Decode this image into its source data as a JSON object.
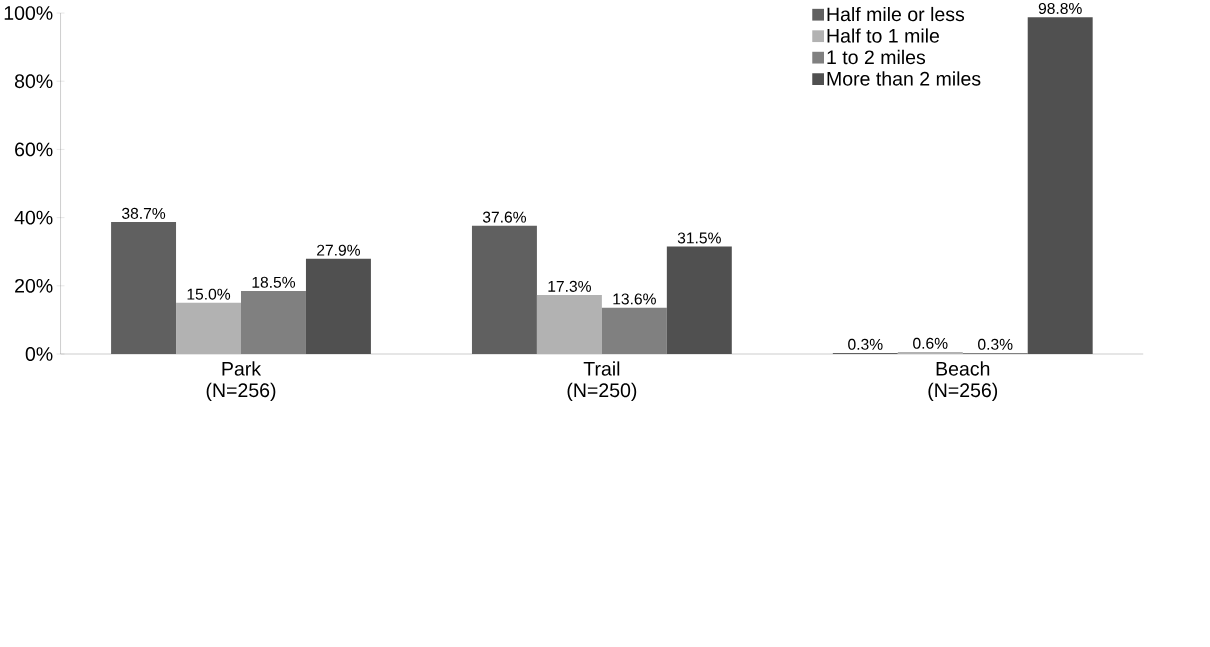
{
  "chart_data": {
    "type": "bar",
    "categories": [
      "Park (N=256)",
      "Trail (N=250)",
      "Beach (N=256)"
    ],
    "series": [
      {
        "name": "Half mile or less",
        "color": "#606060",
        "values": [
          38.7,
          37.6,
          0.3
        ],
        "value_labels": [
          "38.7%",
          "37.6%",
          "0.3%"
        ]
      },
      {
        "name": "Half to 1 mile",
        "color": "#b2b2b2",
        "values": [
          15.0,
          17.3,
          0.6
        ],
        "value_labels": [
          "15.0%",
          "17.3%",
          "0.6%"
        ]
      },
      {
        "name": "1 to 2 miles",
        "color": "#808080",
        "values": [
          18.5,
          13.6,
          0.3
        ],
        "value_labels": [
          "18.5%",
          "13.6%",
          "0.3%"
        ]
      },
      {
        "name": "More than 2 miles",
        "color": "#505050",
        "values": [
          27.9,
          31.5,
          98.8
        ],
        "value_labels": [
          "27.9%",
          "31.5%",
          "98.8%"
        ]
      }
    ],
    "ylim": [
      0,
      100
    ],
    "yticks": [
      {
        "value": 0,
        "label": "0%"
      },
      {
        "value": 20,
        "label": "20%"
      },
      {
        "value": 40,
        "label": "40%"
      },
      {
        "value": 60,
        "label": "60%"
      },
      {
        "value": 80,
        "label": "80%"
      },
      {
        "value": 100,
        "label": "100%"
      }
    ],
    "grid": false,
    "legend": "top right"
  }
}
